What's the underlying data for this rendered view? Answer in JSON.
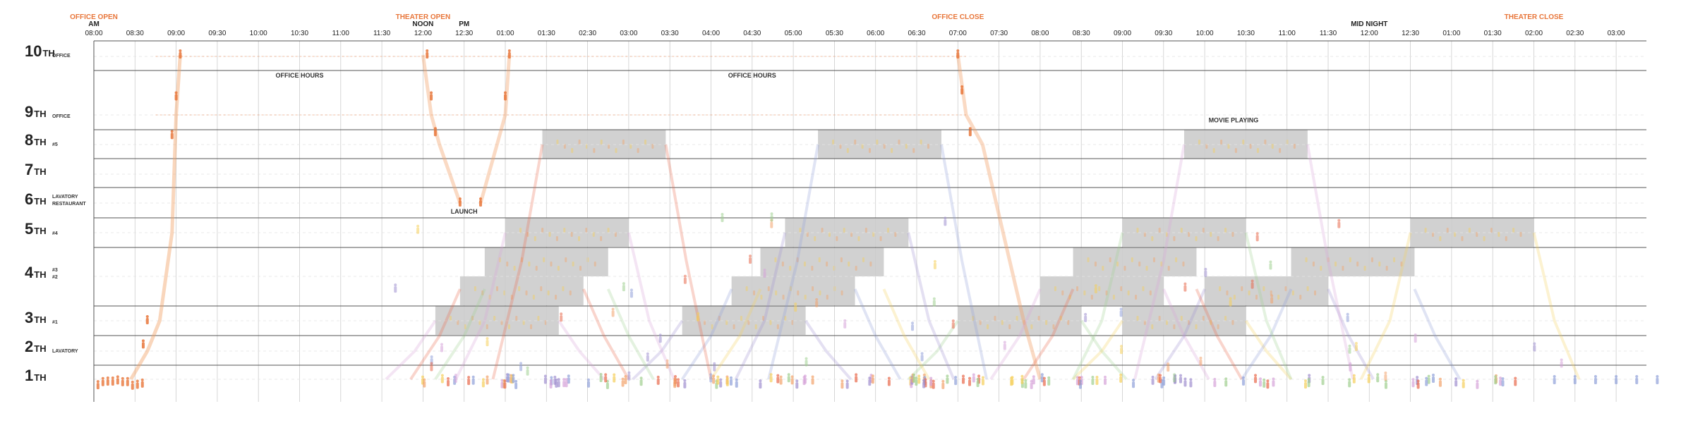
{
  "chart_data": {
    "type": "diagram",
    "header": {
      "am": "AM",
      "pm": "PM",
      "noon": "NOON",
      "midnight": "MID NIGHT"
    },
    "time_labels": [
      "08:00",
      "08:30",
      "09:00",
      "09:30",
      "10:00",
      "10:30",
      "11:00",
      "11:30",
      "12:00",
      "12:30",
      "01:00",
      "01:30",
      "02:30",
      "03:00",
      "03:30",
      "04:00",
      "04:30",
      "05:00",
      "05:30",
      "06:00",
      "06:30",
      "07:00",
      "07:30",
      "08:00",
      "08:30",
      "09:00",
      "09:30",
      "10:00",
      "10:30",
      "11:00",
      "11:30",
      "12:00",
      "12:30",
      "01:00",
      "01:30",
      "02:00",
      "02:30",
      "03:00"
    ],
    "events": [
      {
        "label": "OFFICE OPEN",
        "at_index": 0
      },
      {
        "label": "THEATER OPEN",
        "at_index": 8
      },
      {
        "label": "OFFICE CLOSE",
        "at_index": 21
      },
      {
        "label": "THEATER CLOSE",
        "at_index": 35
      }
    ],
    "floors": [
      {
        "num": "10",
        "suffix": "TH",
        "sub": [
          "OFFICE"
        ]
      },
      {
        "num": "9",
        "suffix": "TH",
        "sub": [
          "OFFICE"
        ]
      },
      {
        "num": "8",
        "suffix": "TH",
        "sub": [
          "#5"
        ]
      },
      {
        "num": "7",
        "suffix": "TH",
        "sub": []
      },
      {
        "num": "6",
        "suffix": "TH",
        "sub": [
          "LAVATORY",
          "RESTAURANT"
        ]
      },
      {
        "num": "5",
        "suffix": "TH",
        "sub": [
          "#4"
        ]
      },
      {
        "num": "4",
        "suffix": "TH",
        "sub": [
          "#3",
          "#2"
        ]
      },
      {
        "num": "3",
        "suffix": "TH",
        "sub": [
          "#1"
        ]
      },
      {
        "num": "2",
        "suffix": "TH",
        "sub": [
          "LAVATORY"
        ]
      },
      {
        "num": "1",
        "suffix": "TH",
        "sub": []
      }
    ],
    "annotations": [
      {
        "label": "OFFICE HOURS",
        "floor": 9.6,
        "at_index": 5.0
      },
      {
        "label": "OFFICE HOURS",
        "floor": 9.6,
        "at_index": 16.0
      },
      {
        "label": "MOVIE PLAYING",
        "floor": 8.7,
        "at_index": 27.7
      },
      {
        "label": "LAUNCH",
        "floor": 5.6,
        "at_index": 9.0
      }
    ],
    "screenings": [
      {
        "floor": "3",
        "start_index": 8.3,
        "end_index": 11.3
      },
      {
        "floor": "3",
        "start_index": 14.3,
        "end_index": 17.3
      },
      {
        "floor": "3",
        "start_index": 21.0,
        "end_index": 24.0
      },
      {
        "floor": "3",
        "start_index": 25.0,
        "end_index": 28.0
      },
      {
        "floor": "4b",
        "start_index": 8.9,
        "end_index": 11.9
      },
      {
        "floor": "4b",
        "start_index": 15.5,
        "end_index": 18.5
      },
      {
        "floor": "4b",
        "start_index": 23.0,
        "end_index": 26.0
      },
      {
        "floor": "4b",
        "start_index": 27.0,
        "end_index": 30.0
      },
      {
        "floor": "4a",
        "start_index": 9.5,
        "end_index": 12.5
      },
      {
        "floor": "4a",
        "start_index": 16.2,
        "end_index": 19.2
      },
      {
        "floor": "4a",
        "start_index": 23.8,
        "end_index": 26.8
      },
      {
        "floor": "4a",
        "start_index": 29.1,
        "end_index": 32.1
      },
      {
        "floor": "5",
        "start_index": 10.0,
        "end_index": 13.0
      },
      {
        "floor": "5",
        "start_index": 16.8,
        "end_index": 19.8
      },
      {
        "floor": "5",
        "start_index": 25.0,
        "end_index": 28.0
      },
      {
        "floor": "5",
        "start_index": 32.0,
        "end_index": 35.0
      },
      {
        "floor": "8",
        "start_index": 10.9,
        "end_index": 13.9
      },
      {
        "floor": "8",
        "start_index": 17.6,
        "end_index": 20.6
      },
      {
        "floor": "8",
        "start_index": 26.5,
        "end_index": 29.5
      }
    ],
    "colors": {
      "office": "#e8763a",
      "screening_box": "#c9c9c9",
      "flow_orange": "#f2a36b",
      "flow_purple": "#9f8fcf",
      "flow_pink": "#d6a3d9",
      "flow_green": "#9fcf8f",
      "flow_yellow": "#f5cf5a",
      "flow_red": "#e8684a",
      "flow_blue": "#8f9fd9",
      "grid": "#555555",
      "gridlight": "#cccccc"
    }
  }
}
